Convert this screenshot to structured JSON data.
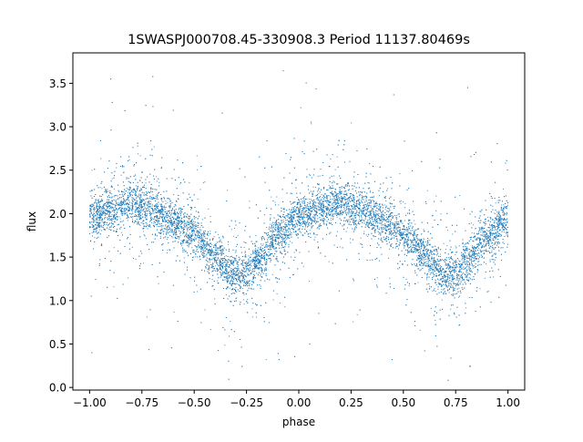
{
  "chart_data": {
    "type": "scatter",
    "title": "1SWASPJ000708.45-330908.3 Period 11137.80469s",
    "xlabel": "phase",
    "ylabel": "flux",
    "xlim": [
      -1.08,
      1.08
    ],
    "ylim": [
      -0.03,
      3.85
    ],
    "xticks": [
      -1.0,
      -0.75,
      -0.5,
      -0.25,
      0.0,
      0.25,
      0.5,
      0.75,
      1.0
    ],
    "xtick_labels": [
      "−1.00",
      "−0.75",
      "−0.50",
      "−0.25",
      "0.00",
      "0.25",
      "0.50",
      "0.75",
      "1.00"
    ],
    "yticks": [
      0.0,
      0.5,
      1.0,
      1.5,
      2.0,
      2.5,
      3.0,
      3.5
    ],
    "ytick_labels": [
      "0.0",
      "0.5",
      "1.0",
      "1.5",
      "2.0",
      "2.5",
      "3.0",
      "3.5"
    ],
    "grid": false,
    "point_color": "#1f77b4",
    "series": [
      {
        "description_of_shape": "phase-folded light curve",
        "profile": [
          {
            "phase": -1.0,
            "flux": 1.95
          },
          {
            "phase": -0.9,
            "flux": 2.05
          },
          {
            "phase": -0.8,
            "flux": 2.12
          },
          {
            "phase": -0.7,
            "flux": 2.05
          },
          {
            "phase": -0.6,
            "flux": 1.92
          },
          {
            "phase": -0.5,
            "flux": 1.75
          },
          {
            "phase": -0.4,
            "flux": 1.5
          },
          {
            "phase": -0.3,
            "flux": 1.28
          },
          {
            "phase": -0.25,
            "flux": 1.3
          },
          {
            "phase": -0.2,
            "flux": 1.45
          },
          {
            "phase": -0.1,
            "flux": 1.75
          },
          {
            "phase": 0.0,
            "flux": 1.95
          },
          {
            "phase": 0.1,
            "flux": 2.05
          },
          {
            "phase": 0.2,
            "flux": 2.12
          },
          {
            "phase": 0.3,
            "flux": 2.05
          },
          {
            "phase": 0.4,
            "flux": 1.92
          },
          {
            "phase": 0.5,
            "flux": 1.75
          },
          {
            "phase": 0.6,
            "flux": 1.5
          },
          {
            "phase": 0.7,
            "flux": 1.28
          },
          {
            "phase": 0.75,
            "flux": 1.3
          },
          {
            "phase": 0.8,
            "flux": 1.45
          },
          {
            "phase": 0.9,
            "flux": 1.75
          },
          {
            "phase": 1.0,
            "flux": 1.95
          }
        ],
        "approx_point_count": 12000
      }
    ]
  }
}
